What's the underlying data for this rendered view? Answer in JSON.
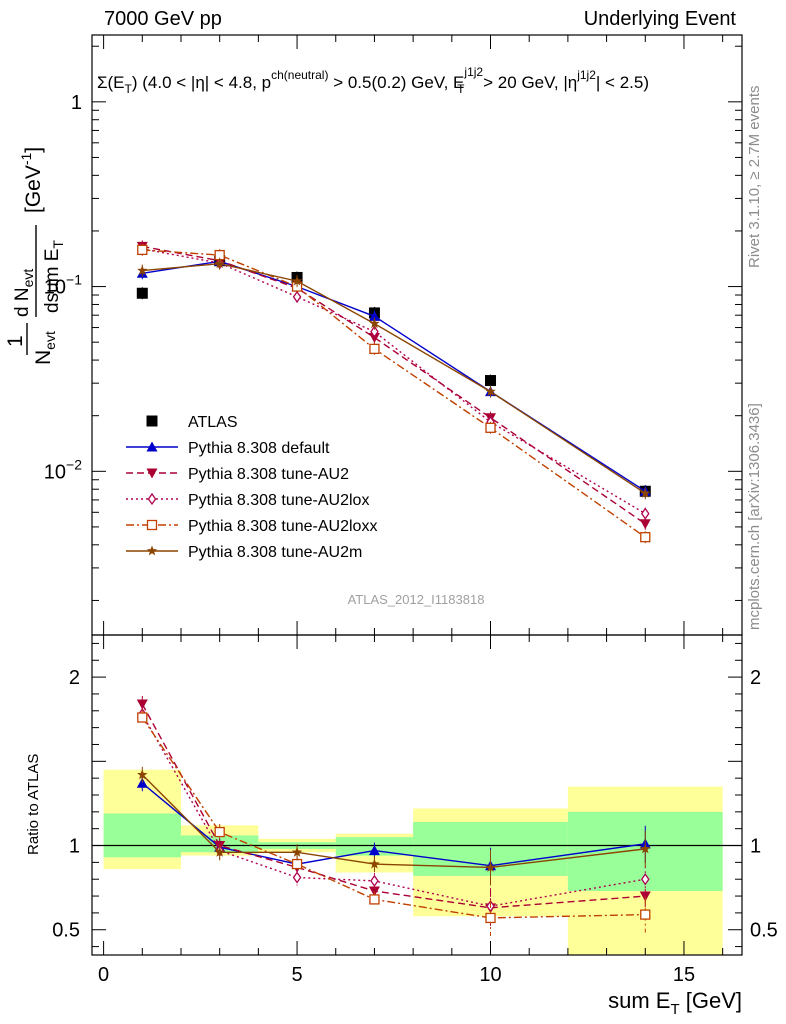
{
  "header": {
    "left": "7000 GeV pp",
    "right": "Underlying Event"
  },
  "side_labels": {
    "rivet": "Rivet 3.1.10, ≥ 2.7M events",
    "mcplots": "mcplots.cern.ch [arXiv:1306.3436]"
  },
  "chart_data": [
    {
      "type": "line",
      "panel": "main",
      "title": "Σ(E_T) (4.0 < |η| < 4.8, p^ch(neutral) > 0.5(0.2) GeV, E_T^j1j2 > 20 GeV, |η^j1j2| < 2.5)",
      "title_parts": {
        "t1": "Σ(E",
        "t1sub": "T",
        "t2": ") (4.0 < |η| < 4.8, p",
        "t2sup": "ch(neutral)",
        "t3": " > 0.5(0.2) GeV, E",
        "t3sup": "j1j2",
        "t3sub": "T",
        "t4": " > 20 GeV, |η",
        "t4sup": "j1j2",
        "t5": "| < 2.5)"
      },
      "ylabel": "1/N_evt dN_evt/dsum E_T [GeV^-1]",
      "ylabel_parts": {
        "one": "1",
        "N": "N",
        "evt": "evt",
        "dN": "d N",
        "dsum": "dsum E",
        "T": "T",
        "unit": "[GeV",
        "unitsup": "-1",
        "close": "]"
      },
      "yscale": "log",
      "xlim": [
        -0.3,
        16.5
      ],
      "ylim": [
        0.0013,
        2.3
      ],
      "y_ticks": [
        {
          "value": 1,
          "label": "1"
        },
        {
          "value": 0.1,
          "label": "10",
          "sup": "−1"
        },
        {
          "value": 0.01,
          "label": "10",
          "sup": "−2"
        }
      ],
      "watermark": "ATLAS_2012_I1183818",
      "legend_position": "lower-left",
      "series": [
        {
          "name": "ATLAS",
          "color": "#000000",
          "marker": "square-filled",
          "dash": "none",
          "x": [
            1,
            3,
            5,
            7,
            10,
            14
          ],
          "y": [
            0.092,
            0.138,
            0.112,
            0.072,
            0.031,
            0.0078
          ]
        },
        {
          "name": "Pythia 8.308 default",
          "color": "#0000cc",
          "marker": "triangle-up-filled",
          "dash": "solid",
          "x": [
            1,
            3,
            5,
            7,
            10,
            14
          ],
          "y": [
            0.118,
            0.137,
            0.1,
            0.069,
            0.027,
            0.0078
          ]
        },
        {
          "name": "Pythia 8.308 tune-AU2",
          "color": "#aa0033",
          "marker": "triangle-down-filled",
          "dash": "dashed",
          "x": [
            1,
            3,
            5,
            7,
            10,
            14
          ],
          "y": [
            0.165,
            0.138,
            0.098,
            0.053,
            0.0195,
            0.0052
          ]
        },
        {
          "name": "Pythia 8.308 tune-AU2lox",
          "color": "#b00050",
          "marker": "diamond-open",
          "dash": "dotted",
          "x": [
            1,
            3,
            5,
            7,
            10,
            14
          ],
          "y": [
            0.16,
            0.134,
            0.088,
            0.057,
            0.0185,
            0.0059
          ]
        },
        {
          "name": "Pythia 8.308 tune-AU2loxx",
          "color": "#c04000",
          "marker": "square-open",
          "dash": "dashdot",
          "x": [
            1,
            3,
            5,
            7,
            10,
            14
          ],
          "y": [
            0.158,
            0.148,
            0.1,
            0.046,
            0.0172,
            0.0044
          ]
        },
        {
          "name": "Pythia 8.308 tune-AU2m",
          "color": "#8b4500",
          "marker": "star-filled",
          "dash": "solid",
          "x": [
            1,
            3,
            5,
            7,
            10,
            14
          ],
          "y": [
            0.122,
            0.133,
            0.107,
            0.063,
            0.027,
            0.0076
          ]
        }
      ]
    },
    {
      "type": "line",
      "panel": "ratio",
      "ylabel": "Ratio to ATLAS",
      "xlabel": "sum E_T [GeV]",
      "xlabel_parts": {
        "main": "sum E",
        "sub": "T",
        "unit": " [GeV]"
      },
      "xlim": [
        -0.3,
        16.5
      ],
      "ylim": [
        0.35,
        2.25
      ],
      "x_ticks": [
        0,
        5,
        10,
        15
      ],
      "y_ticks": [
        0.5,
        1,
        2
      ],
      "bands": [
        {
          "x0": 0,
          "x1": 2,
          "green": [
            0.93,
            1.19
          ],
          "yellow": [
            0.86,
            1.45
          ]
        },
        {
          "x0": 2,
          "x1": 4,
          "green": [
            0.96,
            1.06
          ],
          "yellow": [
            0.94,
            1.12
          ]
        },
        {
          "x0": 4,
          "x1": 6,
          "green": [
            0.98,
            1.02
          ],
          "yellow": [
            0.96,
            1.04
          ]
        },
        {
          "x0": 6,
          "x1": 8,
          "green": [
            0.94,
            1.05
          ],
          "yellow": [
            0.84,
            1.07
          ]
        },
        {
          "x0": 8,
          "x1": 12,
          "green": [
            0.82,
            1.14
          ],
          "yellow": [
            0.58,
            1.22
          ]
        },
        {
          "x0": 12,
          "x1": 16,
          "green": [
            0.73,
            1.2
          ],
          "yellow": [
            0.35,
            1.35
          ]
        }
      ],
      "series": [
        {
          "name": "Pythia 8.308 default",
          "x": [
            1,
            3,
            5,
            7,
            10,
            14
          ],
          "y": [
            1.37,
            0.99,
            0.89,
            0.97,
            0.88,
            1.01
          ]
        },
        {
          "name": "Pythia 8.308 tune-AU2",
          "x": [
            1,
            3,
            5,
            7,
            10,
            14
          ],
          "y": [
            1.84,
            1.0,
            0.87,
            0.73,
            0.63,
            0.7
          ]
        },
        {
          "name": "Pythia 8.308 tune-AU2lox",
          "x": [
            1,
            3,
            5,
            7,
            10,
            14
          ],
          "y": [
            1.78,
            0.97,
            0.81,
            0.79,
            0.64,
            0.8
          ]
        },
        {
          "name": "Pythia 8.308 tune-AU2loxx",
          "x": [
            1,
            3,
            5,
            7,
            10,
            14
          ],
          "y": [
            1.76,
            1.08,
            0.89,
            0.68,
            0.57,
            0.59
          ]
        },
        {
          "name": "Pythia 8.308 tune-AU2m",
          "x": [
            1,
            3,
            5,
            7,
            10,
            14
          ],
          "y": [
            1.42,
            0.96,
            0.96,
            0.89,
            0.87,
            0.98
          ]
        }
      ]
    }
  ]
}
